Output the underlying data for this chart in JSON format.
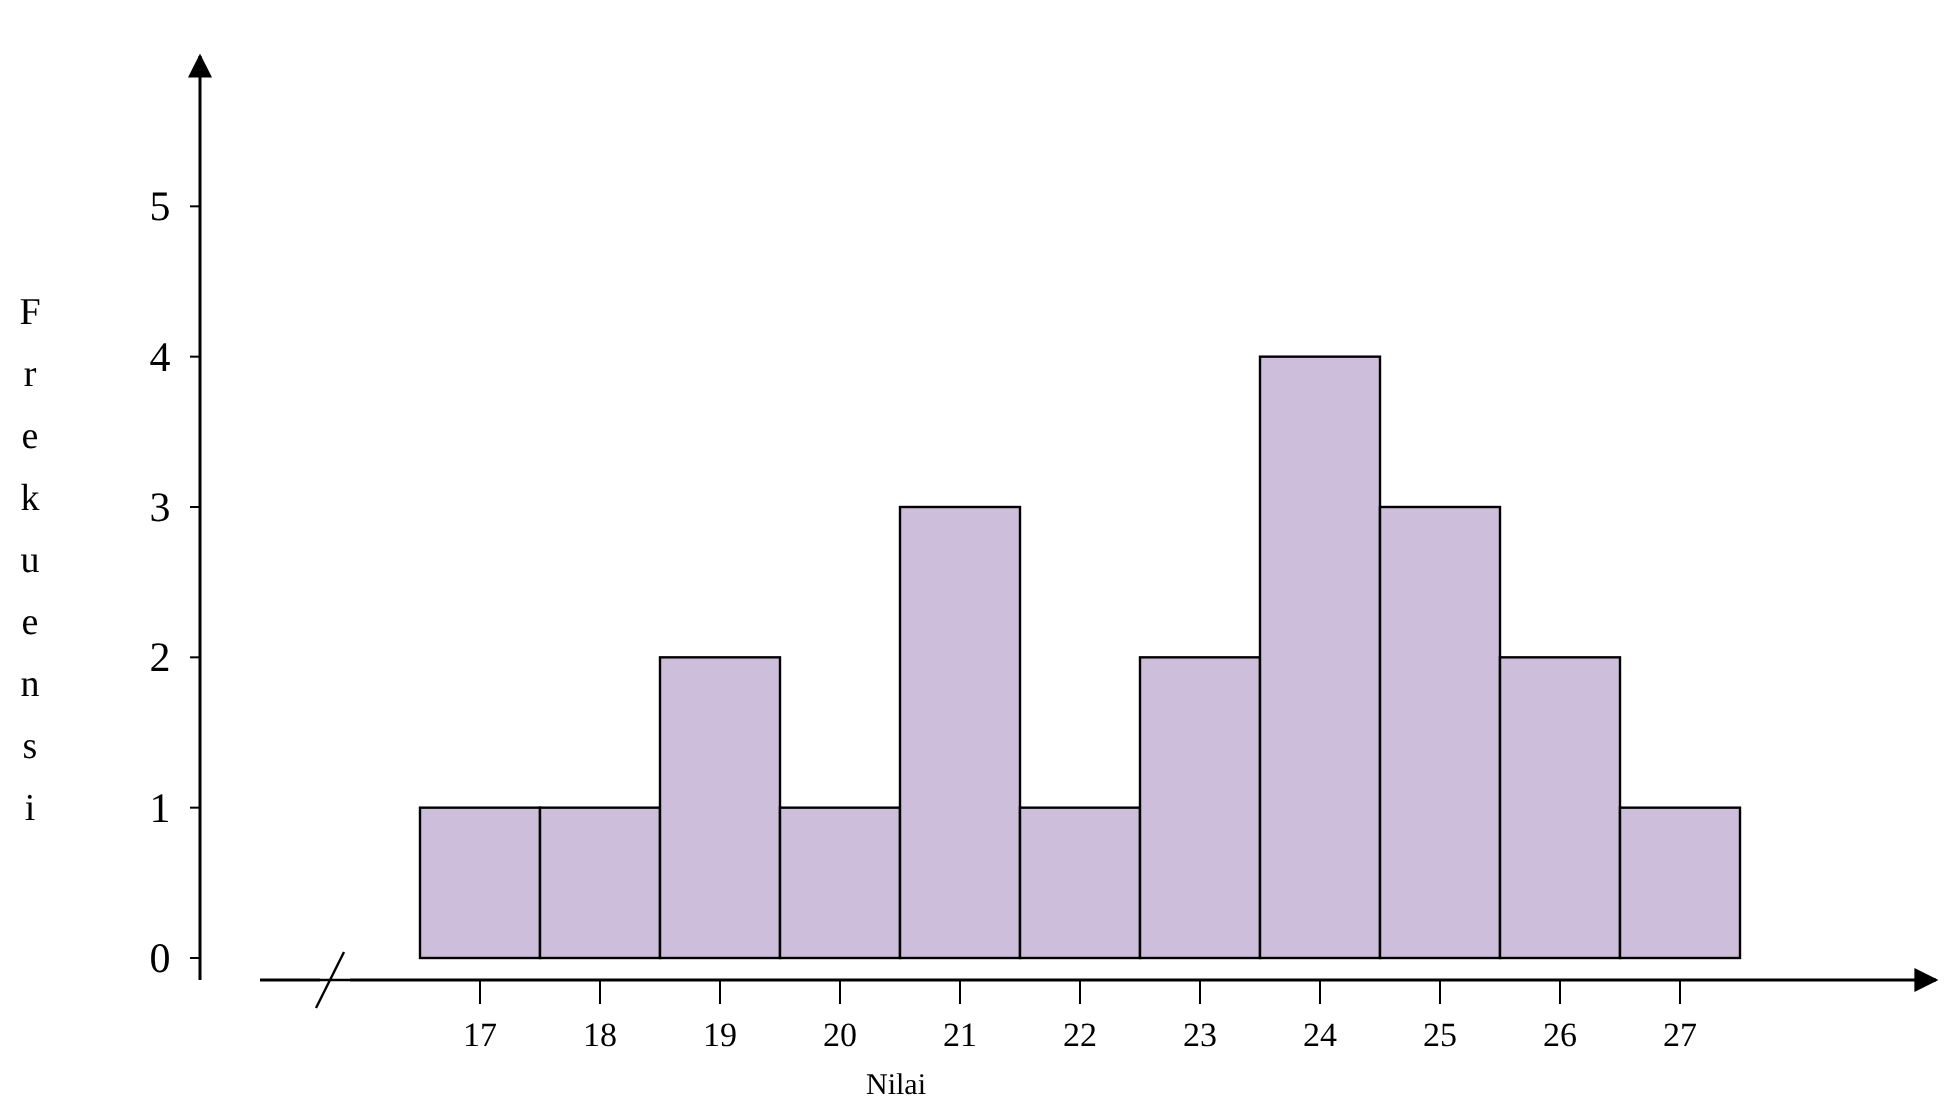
{
  "chart_data": {
    "type": "bar",
    "xlabel": "Nilai",
    "ylabel": "Frekuensi",
    "categories": [
      "17",
      "18",
      "19",
      "20",
      "21",
      "22",
      "23",
      "24",
      "25",
      "26",
      "27"
    ],
    "values": [
      1,
      1,
      2,
      1,
      3,
      1,
      2,
      4,
      3,
      2,
      1
    ],
    "color": "#cdbfdb",
    "ylim": [
      0,
      6
    ],
    "yticks": [
      0,
      1,
      2,
      3,
      4,
      5
    ],
    "grid": false
  }
}
